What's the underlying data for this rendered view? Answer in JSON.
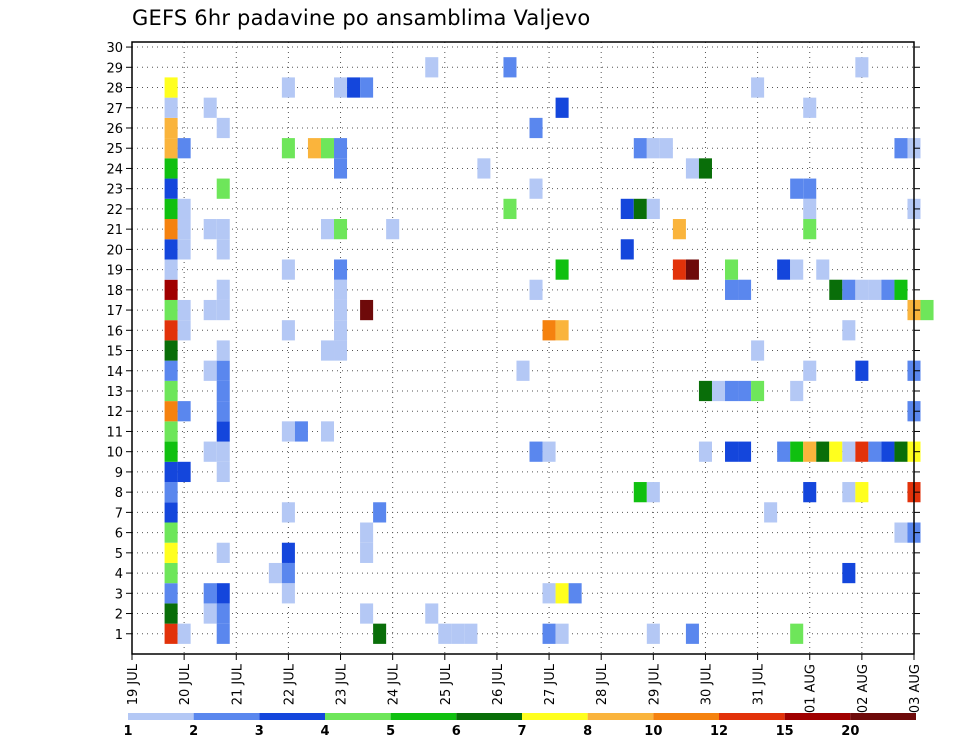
{
  "chart_data": {
    "type": "heatmap",
    "title": "GEFS 6hr padavine po ansamblima Valjevo",
    "xlabel": "",
    "ylabel": "",
    "x_tick_labels": [
      "19 JUL",
      "20 JUL",
      "21 JUL",
      "22 JUL",
      "23 JUL",
      "24 JUL",
      "25 JUL",
      "26 JUL",
      "27 JUL",
      "28 JUL",
      "29 JUL",
      "30 JUL",
      "31 JUL",
      "01 AUG",
      "02 AUG",
      "03 AUG"
    ],
    "y_tick_labels": [
      "1",
      "2",
      "3",
      "4",
      "5",
      "6",
      "7",
      "8",
      "9",
      "10",
      "11",
      "12",
      "13",
      "14",
      "15",
      "16",
      "17",
      "18",
      "19",
      "20",
      "21",
      "22",
      "23",
      "24",
      "25",
      "26",
      "27",
      "28",
      "29",
      "30"
    ],
    "xlim_days": [
      0,
      15
    ],
    "ylim_members": [
      0,
      30
    ],
    "time_step_days": 0.25,
    "grid": true,
    "colorbar": {
      "position": "bottom",
      "labels": [
        "1",
        "2",
        "3",
        "4",
        "5",
        "6",
        "7",
        "8",
        "10",
        "12",
        "15",
        "20"
      ],
      "colors": [
        "#b4c8f5",
        "#5a87ee",
        "#1446dc",
        "#6ee65a",
        "#10c010",
        "#096e09",
        "#ffff1e",
        "#fab43c",
        "#f5820f",
        "#e2320a",
        "#a00000",
        "#6e0a0a"
      ]
    },
    "cells": [
      {
        "member": 1,
        "day": 0.75,
        "cat": 10
      },
      {
        "member": 1,
        "day": 1.0,
        "cat": 1
      },
      {
        "member": 1,
        "day": 1.75,
        "cat": 2
      },
      {
        "member": 1,
        "day": 4.75,
        "cat": 6
      },
      {
        "member": 1,
        "day": 6.0,
        "cat": 1
      },
      {
        "member": 1,
        "day": 6.25,
        "cat": 1
      },
      {
        "member": 1,
        "day": 6.5,
        "cat": 1
      },
      {
        "member": 1,
        "day": 8.0,
        "cat": 2
      },
      {
        "member": 1,
        "day": 8.25,
        "cat": 1
      },
      {
        "member": 1,
        "day": 10.0,
        "cat": 1
      },
      {
        "member": 1,
        "day": 10.75,
        "cat": 2
      },
      {
        "member": 1,
        "day": 12.75,
        "cat": 4
      },
      {
        "member": 2,
        "day": 0.75,
        "cat": 6
      },
      {
        "member": 2,
        "day": 1.5,
        "cat": 1
      },
      {
        "member": 2,
        "day": 1.75,
        "cat": 2
      },
      {
        "member": 2,
        "day": 4.5,
        "cat": 1
      },
      {
        "member": 2,
        "day": 5.75,
        "cat": 1
      },
      {
        "member": 3,
        "day": 0.75,
        "cat": 2
      },
      {
        "member": 3,
        "day": 1.5,
        "cat": 2
      },
      {
        "member": 3,
        "day": 1.75,
        "cat": 3
      },
      {
        "member": 3,
        "day": 3.0,
        "cat": 1
      },
      {
        "member": 3,
        "day": 8.0,
        "cat": 1
      },
      {
        "member": 3,
        "day": 8.25,
        "cat": 7
      },
      {
        "member": 3,
        "day": 8.5,
        "cat": 2
      },
      {
        "member": 4,
        "day": 0.75,
        "cat": 4
      },
      {
        "member": 4,
        "day": 2.75,
        "cat": 1
      },
      {
        "member": 4,
        "day": 3.0,
        "cat": 2
      },
      {
        "member": 4,
        "day": 13.75,
        "cat": 3
      },
      {
        "member": 5,
        "day": 0.75,
        "cat": 7
      },
      {
        "member": 5,
        "day": 1.75,
        "cat": 1
      },
      {
        "member": 5,
        "day": 3.0,
        "cat": 3
      },
      {
        "member": 5,
        "day": 4.5,
        "cat": 1
      },
      {
        "member": 6,
        "day": 0.75,
        "cat": 4
      },
      {
        "member": 6,
        "day": 4.5,
        "cat": 1
      },
      {
        "member": 6,
        "day": 14.75,
        "cat": 1
      },
      {
        "member": 6,
        "day": 15.0,
        "cat": 2
      },
      {
        "member": 7,
        "day": 0.75,
        "cat": 3
      },
      {
        "member": 7,
        "day": 3.0,
        "cat": 1
      },
      {
        "member": 7,
        "day": 4.75,
        "cat": 2
      },
      {
        "member": 7,
        "day": 12.25,
        "cat": 1
      },
      {
        "member": 8,
        "day": 0.75,
        "cat": 2
      },
      {
        "member": 8,
        "day": 9.75,
        "cat": 5
      },
      {
        "member": 8,
        "day": 10.0,
        "cat": 1
      },
      {
        "member": 8,
        "day": 13.0,
        "cat": 3
      },
      {
        "member": 8,
        "day": 13.75,
        "cat": 1
      },
      {
        "member": 8,
        "day": 14.0,
        "cat": 7
      },
      {
        "member": 8,
        "day": 15.0,
        "cat": 10
      },
      {
        "member": 9,
        "day": 0.75,
        "cat": 3
      },
      {
        "member": 9,
        "day": 1.0,
        "cat": 3
      },
      {
        "member": 9,
        "day": 1.75,
        "cat": 1
      },
      {
        "member": 10,
        "day": 0.75,
        "cat": 5
      },
      {
        "member": 10,
        "day": 1.5,
        "cat": 1
      },
      {
        "member": 10,
        "day": 1.75,
        "cat": 1
      },
      {
        "member": 10,
        "day": 7.75,
        "cat": 2
      },
      {
        "member": 10,
        "day": 8.0,
        "cat": 1
      },
      {
        "member": 10,
        "day": 11.0,
        "cat": 1
      },
      {
        "member": 10,
        "day": 11.5,
        "cat": 3
      },
      {
        "member": 10,
        "day": 11.75,
        "cat": 3
      },
      {
        "member": 10,
        "day": 12.5,
        "cat": 2
      },
      {
        "member": 10,
        "day": 12.75,
        "cat": 5
      },
      {
        "member": 10,
        "day": 13.0,
        "cat": 8
      },
      {
        "member": 10,
        "day": 13.25,
        "cat": 6
      },
      {
        "member": 10,
        "day": 13.5,
        "cat": 7
      },
      {
        "member": 10,
        "day": 13.75,
        "cat": 1
      },
      {
        "member": 10,
        "day": 14.0,
        "cat": 10
      },
      {
        "member": 10,
        "day": 14.25,
        "cat": 2
      },
      {
        "member": 10,
        "day": 14.5,
        "cat": 3
      },
      {
        "member": 10,
        "day": 14.75,
        "cat": 6
      },
      {
        "member": 10,
        "day": 15.0,
        "cat": 7
      },
      {
        "member": 11,
        "day": 0.75,
        "cat": 4
      },
      {
        "member": 11,
        "day": 1.75,
        "cat": 3
      },
      {
        "member": 11,
        "day": 3.0,
        "cat": 1
      },
      {
        "member": 11,
        "day": 3.25,
        "cat": 2
      },
      {
        "member": 11,
        "day": 3.75,
        "cat": 1
      },
      {
        "member": 12,
        "day": 0.75,
        "cat": 9
      },
      {
        "member": 12,
        "day": 1.0,
        "cat": 2
      },
      {
        "member": 12,
        "day": 1.75,
        "cat": 2
      },
      {
        "member": 12,
        "day": 15.0,
        "cat": 2
      },
      {
        "member": 13,
        "day": 0.75,
        "cat": 4
      },
      {
        "member": 13,
        "day": 1.75,
        "cat": 2
      },
      {
        "member": 13,
        "day": 11.0,
        "cat": 6
      },
      {
        "member": 13,
        "day": 11.25,
        "cat": 1
      },
      {
        "member": 13,
        "day": 11.5,
        "cat": 2
      },
      {
        "member": 13,
        "day": 11.75,
        "cat": 2
      },
      {
        "member": 13,
        "day": 12.0,
        "cat": 4
      },
      {
        "member": 13,
        "day": 12.75,
        "cat": 1
      },
      {
        "member": 14,
        "day": 0.75,
        "cat": 2
      },
      {
        "member": 14,
        "day": 1.5,
        "cat": 1
      },
      {
        "member": 14,
        "day": 1.75,
        "cat": 2
      },
      {
        "member": 14,
        "day": 7.5,
        "cat": 1
      },
      {
        "member": 14,
        "day": 13.0,
        "cat": 1
      },
      {
        "member": 14,
        "day": 14.0,
        "cat": 3
      },
      {
        "member": 14,
        "day": 15.0,
        "cat": 2
      },
      {
        "member": 15,
        "day": 0.75,
        "cat": 6
      },
      {
        "member": 15,
        "day": 1.75,
        "cat": 1
      },
      {
        "member": 15,
        "day": 3.75,
        "cat": 1
      },
      {
        "member": 15,
        "day": 4.0,
        "cat": 1
      },
      {
        "member": 15,
        "day": 12.0,
        "cat": 1
      },
      {
        "member": 16,
        "day": 0.75,
        "cat": 10
      },
      {
        "member": 16,
        "day": 1.0,
        "cat": 1
      },
      {
        "member": 16,
        "day": 3.0,
        "cat": 1
      },
      {
        "member": 16,
        "day": 4.0,
        "cat": 1
      },
      {
        "member": 16,
        "day": 8.0,
        "cat": 9
      },
      {
        "member": 16,
        "day": 8.25,
        "cat": 8
      },
      {
        "member": 16,
        "day": 13.75,
        "cat": 1
      },
      {
        "member": 17,
        "day": 0.75,
        "cat": 4
      },
      {
        "member": 17,
        "day": 1.0,
        "cat": 1
      },
      {
        "member": 17,
        "day": 1.5,
        "cat": 1
      },
      {
        "member": 17,
        "day": 1.75,
        "cat": 1
      },
      {
        "member": 17,
        "day": 4.0,
        "cat": 1
      },
      {
        "member": 17,
        "day": 4.5,
        "cat": 12
      },
      {
        "member": 17,
        "day": 15.0,
        "cat": 8
      },
      {
        "member": 17,
        "day": 15.25,
        "cat": 4
      },
      {
        "member": 18,
        "day": 0.75,
        "cat": 11
      },
      {
        "member": 18,
        "day": 1.75,
        "cat": 1
      },
      {
        "member": 18,
        "day": 4.0,
        "cat": 1
      },
      {
        "member": 18,
        "day": 7.75,
        "cat": 1
      },
      {
        "member": 18,
        "day": 11.5,
        "cat": 2
      },
      {
        "member": 18,
        "day": 11.75,
        "cat": 2
      },
      {
        "member": 18,
        "day": 13.5,
        "cat": 6
      },
      {
        "member": 18,
        "day": 13.75,
        "cat": 2
      },
      {
        "member": 18,
        "day": 14.0,
        "cat": 1
      },
      {
        "member": 18,
        "day": 14.25,
        "cat": 1
      },
      {
        "member": 18,
        "day": 14.5,
        "cat": 2
      },
      {
        "member": 18,
        "day": 14.75,
        "cat": 5
      },
      {
        "member": 19,
        "day": 0.75,
        "cat": 1
      },
      {
        "member": 19,
        "day": 3.0,
        "cat": 1
      },
      {
        "member": 19,
        "day": 4.0,
        "cat": 2
      },
      {
        "member": 19,
        "day": 8.25,
        "cat": 5
      },
      {
        "member": 19,
        "day": 10.5,
        "cat": 10
      },
      {
        "member": 19,
        "day": 10.75,
        "cat": 12
      },
      {
        "member": 19,
        "day": 11.5,
        "cat": 4
      },
      {
        "member": 19,
        "day": 12.5,
        "cat": 3
      },
      {
        "member": 19,
        "day": 12.75,
        "cat": 1
      },
      {
        "member": 19,
        "day": 13.25,
        "cat": 1
      },
      {
        "member": 20,
        "day": 0.75,
        "cat": 3
      },
      {
        "member": 20,
        "day": 1.0,
        "cat": 1
      },
      {
        "member": 20,
        "day": 1.75,
        "cat": 1
      },
      {
        "member": 20,
        "day": 9.5,
        "cat": 3
      },
      {
        "member": 21,
        "day": 0.75,
        "cat": 9
      },
      {
        "member": 21,
        "day": 1.0,
        "cat": 1
      },
      {
        "member": 21,
        "day": 1.5,
        "cat": 1
      },
      {
        "member": 21,
        "day": 1.75,
        "cat": 1
      },
      {
        "member": 21,
        "day": 3.75,
        "cat": 1
      },
      {
        "member": 21,
        "day": 4.0,
        "cat": 4
      },
      {
        "member": 21,
        "day": 5.0,
        "cat": 1
      },
      {
        "member": 21,
        "day": 10.5,
        "cat": 8
      },
      {
        "member": 21,
        "day": 13.0,
        "cat": 4
      },
      {
        "member": 22,
        "day": 0.75,
        "cat": 5
      },
      {
        "member": 22,
        "day": 1.0,
        "cat": 1
      },
      {
        "member": 22,
        "day": 7.25,
        "cat": 4
      },
      {
        "member": 22,
        "day": 9.5,
        "cat": 3
      },
      {
        "member": 22,
        "day": 9.75,
        "cat": 6
      },
      {
        "member": 22,
        "day": 10.0,
        "cat": 1
      },
      {
        "member": 22,
        "day": 13.0,
        "cat": 1
      },
      {
        "member": 22,
        "day": 15.0,
        "cat": 1
      },
      {
        "member": 23,
        "day": 0.75,
        "cat": 3
      },
      {
        "member": 23,
        "day": 1.75,
        "cat": 4
      },
      {
        "member": 23,
        "day": 7.75,
        "cat": 1
      },
      {
        "member": 23,
        "day": 12.75,
        "cat": 2
      },
      {
        "member": 23,
        "day": 13.0,
        "cat": 2
      },
      {
        "member": 24,
        "day": 0.75,
        "cat": 5
      },
      {
        "member": 24,
        "day": 4.0,
        "cat": 2
      },
      {
        "member": 24,
        "day": 6.75,
        "cat": 1
      },
      {
        "member": 24,
        "day": 10.75,
        "cat": 1
      },
      {
        "member": 24,
        "day": 11.0,
        "cat": 6
      },
      {
        "member": 25,
        "day": 0.75,
        "cat": 8
      },
      {
        "member": 25,
        "day": 1.0,
        "cat": 2
      },
      {
        "member": 25,
        "day": 3.0,
        "cat": 4
      },
      {
        "member": 25,
        "day": 3.5,
        "cat": 8
      },
      {
        "member": 25,
        "day": 3.75,
        "cat": 4
      },
      {
        "member": 25,
        "day": 4.0,
        "cat": 2
      },
      {
        "member": 25,
        "day": 9.75,
        "cat": 2
      },
      {
        "member": 25,
        "day": 10.0,
        "cat": 1
      },
      {
        "member": 25,
        "day": 10.25,
        "cat": 1
      },
      {
        "member": 25,
        "day": 14.75,
        "cat": 2
      },
      {
        "member": 25,
        "day": 15.0,
        "cat": 1
      },
      {
        "member": 26,
        "day": 0.75,
        "cat": 8
      },
      {
        "member": 26,
        "day": 1.75,
        "cat": 1
      },
      {
        "member": 26,
        "day": 7.75,
        "cat": 2
      },
      {
        "member": 27,
        "day": 0.75,
        "cat": 1
      },
      {
        "member": 27,
        "day": 1.5,
        "cat": 1
      },
      {
        "member": 27,
        "day": 8.25,
        "cat": 3
      },
      {
        "member": 27,
        "day": 13.0,
        "cat": 1
      },
      {
        "member": 28,
        "day": 0.75,
        "cat": 7
      },
      {
        "member": 28,
        "day": 3.0,
        "cat": 1
      },
      {
        "member": 28,
        "day": 4.0,
        "cat": 1
      },
      {
        "member": 28,
        "day": 4.25,
        "cat": 3
      },
      {
        "member": 28,
        "day": 4.5,
        "cat": 2
      },
      {
        "member": 28,
        "day": 12.0,
        "cat": 1
      },
      {
        "member": 29,
        "day": 5.75,
        "cat": 1
      },
      {
        "member": 29,
        "day": 7.25,
        "cat": 2
      },
      {
        "member": 29,
        "day": 14.0,
        "cat": 1
      }
    ]
  }
}
